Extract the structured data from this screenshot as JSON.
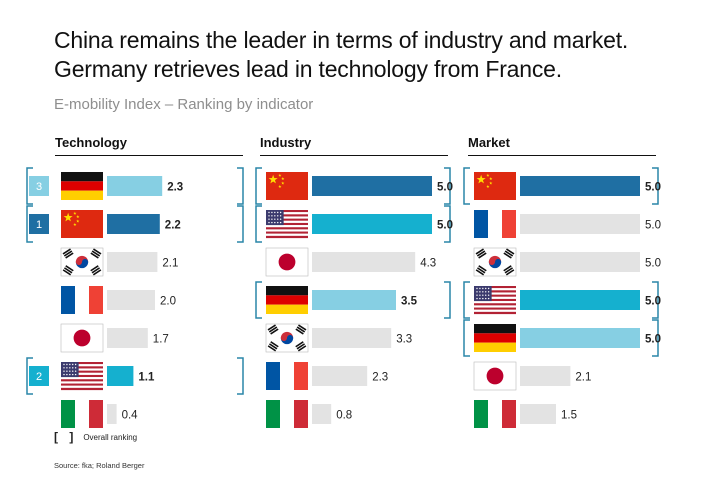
{
  "header": {
    "title_line1": "China remains the leader in terms of industry and market.",
    "title_line2": "Germany retrieves lead in technology from France.",
    "subtitle": "E-mobility Index – Ranking by indicator"
  },
  "legend": {
    "label": "Overall ranking"
  },
  "source": "Source: fka; Roland Berger",
  "colors": {
    "dark_blue": "#1f6fa3",
    "cyan": "#15b0cf",
    "light_blue": "#86cfe3",
    "gray": "#e3e3e3"
  },
  "chart_data": [
    {
      "type": "bar",
      "title": "Technology",
      "xlim": [
        0,
        5
      ],
      "rows": [
        {
          "country": "Germany",
          "value": 2.3,
          "value_label": "2.3",
          "color": "light_blue",
          "highlight": true,
          "rank_label": "3"
        },
        {
          "country": "China",
          "value": 2.2,
          "value_label": "2.2",
          "color": "dark_blue",
          "highlight": true,
          "rank_label": "1"
        },
        {
          "country": "South Korea",
          "value": 2.1,
          "value_label": "2.1",
          "color": "gray",
          "highlight": false,
          "rank_label": ""
        },
        {
          "country": "France",
          "value": 2.0,
          "value_label": "2.0",
          "color": "gray",
          "highlight": false,
          "rank_label": ""
        },
        {
          "country": "Japan",
          "value": 1.7,
          "value_label": "1.7",
          "color": "gray",
          "highlight": false,
          "rank_label": ""
        },
        {
          "country": "USA",
          "value": 1.1,
          "value_label": "1.1",
          "color": "cyan",
          "highlight": true,
          "rank_label": "2"
        },
        {
          "country": "Italy",
          "value": 0.4,
          "value_label": "0.4",
          "color": "gray",
          "highlight": false,
          "rank_label": ""
        }
      ]
    },
    {
      "type": "bar",
      "title": "Industry",
      "xlim": [
        0,
        5
      ],
      "rows": [
        {
          "country": "China",
          "value": 5.0,
          "value_label": "5.0",
          "color": "dark_blue",
          "highlight": true
        },
        {
          "country": "USA",
          "value": 5.0,
          "value_label": "5.0",
          "color": "cyan",
          "highlight": true
        },
        {
          "country": "Japan",
          "value": 4.3,
          "value_label": "4.3",
          "color": "gray",
          "highlight": false
        },
        {
          "country": "Germany",
          "value": 3.5,
          "value_label": "3.5",
          "color": "light_blue",
          "highlight": true
        },
        {
          "country": "South Korea",
          "value": 3.3,
          "value_label": "3.3",
          "color": "gray",
          "highlight": false
        },
        {
          "country": "France",
          "value": 2.3,
          "value_label": "2.3",
          "color": "gray",
          "highlight": false
        },
        {
          "country": "Italy",
          "value": 0.8,
          "value_label": "0.8",
          "color": "gray",
          "highlight": false
        }
      ]
    },
    {
      "type": "bar",
      "title": "Market",
      "xlim": [
        0,
        5
      ],
      "rows": [
        {
          "country": "China",
          "value": 5.0,
          "value_label": "5.0",
          "color": "dark_blue",
          "highlight": true
        },
        {
          "country": "France",
          "value": 5.0,
          "value_label": "5.0",
          "color": "gray",
          "highlight": false
        },
        {
          "country": "South Korea",
          "value": 5.0,
          "value_label": "5.0",
          "color": "gray",
          "highlight": false
        },
        {
          "country": "USA",
          "value": 5.0,
          "value_label": "5.0",
          "color": "cyan",
          "highlight": true
        },
        {
          "country": "Germany",
          "value": 5.0,
          "value_label": "5.0",
          "color": "light_blue",
          "highlight": true
        },
        {
          "country": "Japan",
          "value": 2.1,
          "value_label": "2.1",
          "color": "gray",
          "highlight": false
        },
        {
          "country": "Italy",
          "value": 1.5,
          "value_label": "1.5",
          "color": "gray",
          "highlight": false
        }
      ]
    }
  ]
}
